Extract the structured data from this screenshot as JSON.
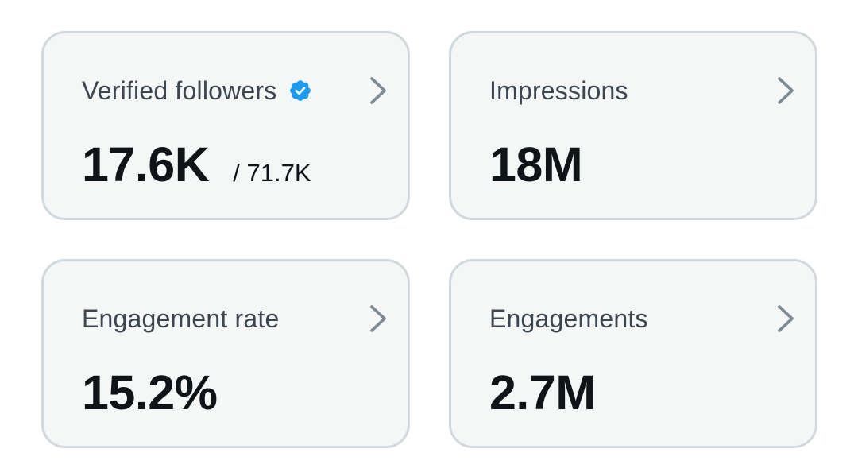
{
  "cards": [
    {
      "label": "Verified followers",
      "value": "17.6K",
      "sub": "/ 71.7K",
      "verified": true
    },
    {
      "label": "Impressions",
      "value": "18M"
    },
    {
      "label": "Engagement rate",
      "value": "15.2%"
    },
    {
      "label": "Engagements",
      "value": "2.7M"
    }
  ],
  "icons": {
    "verified": "verified-badge-icon",
    "chevron": "chevron-right-icon"
  },
  "colors": {
    "card_background": "#f5f7f7",
    "card_border": "#cfd9de",
    "label": "#3b4650",
    "value": "#0f1419",
    "verified_badge": "#1d9bf0",
    "chevron": "#7d8b96"
  }
}
